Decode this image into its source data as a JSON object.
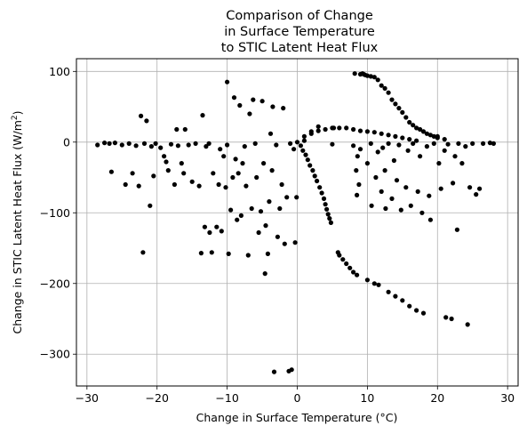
{
  "chart_data": {
    "type": "scatter",
    "title_lines": [
      "Comparison of Change",
      "in Surface Temperature",
      "to STIC Latent Heat Flux"
    ],
    "xlabel": "Change in Surface Temperature (°C)",
    "ylabel_main": "Change in STIC Latent Heat Flux (W/m",
    "ylabel_sup": "2",
    "ylabel_tail": ")",
    "xlim": [
      -31.5,
      31.5
    ],
    "ylim": [
      -345,
      118
    ],
    "xticks": [
      -30,
      -20,
      -10,
      0,
      10,
      20,
      30
    ],
    "xtick_labels": [
      "−30",
      "−20",
      "−10",
      "0",
      "10",
      "20",
      "30"
    ],
    "yticks": [
      100,
      0,
      -100,
      -200,
      -300
    ],
    "ytick_labels": [
      "100",
      "0",
      "−100",
      "−200",
      "−300"
    ],
    "grid": true,
    "marker_color": "#000000",
    "series": [
      {
        "points": [
          [
            -28.5,
            -4
          ],
          [
            -27.5,
            -1
          ],
          [
            -26.8,
            -2
          ],
          [
            -26.5,
            -42
          ],
          [
            -26.0,
            -1
          ],
          [
            -25.0,
            -4
          ],
          [
            -24.5,
            -60
          ],
          [
            -24.0,
            -2
          ],
          [
            -23.5,
            -44
          ],
          [
            -23.0,
            -5
          ],
          [
            -22.6,
            -62
          ],
          [
            -22.3,
            37
          ],
          [
            -22.0,
            -156
          ],
          [
            -21.8,
            -2
          ],
          [
            -21.5,
            30
          ],
          [
            -21.0,
            -90
          ],
          [
            -20.8,
            -6
          ],
          [
            -20.5,
            -48
          ],
          [
            -20.2,
            -2
          ],
          [
            -19.5,
            -8
          ],
          [
            -19.0,
            -20
          ],
          [
            -18.7,
            -28
          ],
          [
            -18.4,
            -40
          ],
          [
            -18.0,
            -3
          ],
          [
            -17.5,
            -60
          ],
          [
            -17.2,
            18
          ],
          [
            -17.0,
            -5
          ],
          [
            -16.5,
            -30
          ],
          [
            -16.2,
            -44
          ],
          [
            -16.0,
            18
          ],
          [
            -15.5,
            -4
          ],
          [
            -15.0,
            -56
          ],
          [
            -14.5,
            -2
          ],
          [
            -14.0,
            -62
          ],
          [
            -13.7,
            -157
          ],
          [
            -13.5,
            38
          ],
          [
            -13.2,
            -120
          ],
          [
            -13.0,
            -6
          ],
          [
            -12.6,
            -2
          ],
          [
            -12.5,
            -128
          ],
          [
            -12.2,
            -156
          ],
          [
            -12.0,
            -44
          ],
          [
            -11.5,
            -120
          ],
          [
            -11.0,
            -10
          ],
          [
            -11.2,
            -60
          ],
          [
            -10.8,
            -126
          ],
          [
            -10.5,
            -20
          ],
          [
            -10.2,
            -64
          ],
          [
            -10.0,
            -4
          ],
          [
            -10.0,
            85
          ],
          [
            -9.8,
            -158
          ],
          [
            -9.5,
            -96
          ],
          [
            -9.2,
            -50
          ],
          [
            -9.0,
            63
          ],
          [
            -8.8,
            -24
          ],
          [
            -8.6,
            -110
          ],
          [
            -8.4,
            -44
          ],
          [
            -8.2,
            52
          ],
          [
            -8.0,
            -104
          ],
          [
            -7.8,
            -30
          ],
          [
            -7.5,
            -6
          ],
          [
            -7.3,
            -62
          ],
          [
            -7.0,
            -160
          ],
          [
            -6.8,
            40
          ],
          [
            -6.5,
            -94
          ],
          [
            -6.3,
            60
          ],
          [
            -6.0,
            -2
          ],
          [
            -5.8,
            -50
          ],
          [
            -5.5,
            -128
          ],
          [
            -5.2,
            -98
          ],
          [
            -5.0,
            58
          ],
          [
            -4.8,
            -30
          ],
          [
            -4.6,
            -186
          ],
          [
            -4.5,
            -118
          ],
          [
            -4.2,
            -158
          ],
          [
            -4.0,
            -84
          ],
          [
            -3.8,
            12
          ],
          [
            -3.6,
            -40
          ],
          [
            -3.5,
            50
          ],
          [
            -3.3,
            -325
          ],
          [
            -3.0,
            -4
          ],
          [
            -2.8,
            -134
          ],
          [
            -2.5,
            -94
          ],
          [
            -2.2,
            -60
          ],
          [
            -2.0,
            48
          ],
          [
            -1.8,
            -144
          ],
          [
            -1.5,
            -78
          ],
          [
            -1.2,
            -324
          ],
          [
            -1.0,
            -2
          ],
          [
            -0.8,
            -322
          ],
          [
            -0.5,
            -10
          ],
          [
            -0.3,
            -142
          ],
          [
            -0.1,
            -78
          ],
          [
            0.0,
            0
          ],
          [
            0.5,
            -5
          ],
          [
            0.8,
            -12
          ],
          [
            1.0,
            2
          ],
          [
            1.2,
            -18
          ],
          [
            1.5,
            -25
          ],
          [
            1.8,
            -33
          ],
          [
            2.0,
            15
          ],
          [
            2.2,
            -40
          ],
          [
            2.5,
            -48
          ],
          [
            2.8,
            -55
          ],
          [
            3.0,
            22
          ],
          [
            3.2,
            -64
          ],
          [
            3.5,
            -72
          ],
          [
            3.8,
            -80
          ],
          [
            4.0,
            -88
          ],
          [
            4.2,
            -95
          ],
          [
            4.4,
            -102
          ],
          [
            4.6,
            -108
          ],
          [
            4.8,
            -114
          ],
          [
            5.0,
            -3
          ],
          [
            5.2,
            20
          ],
          [
            5.8,
            -156
          ],
          [
            6.0,
            -160
          ],
          [
            6.5,
            -166
          ],
          [
            7.0,
            -172
          ],
          [
            7.5,
            -178
          ],
          [
            8.0,
            -184
          ],
          [
            8.5,
            -188
          ],
          [
            8.0,
            -5
          ],
          [
            8.2,
            97
          ],
          [
            8.6,
            -20
          ],
          [
            8.4,
            -40
          ],
          [
            8.8,
            -60
          ],
          [
            8.5,
            -75
          ],
          [
            9.0,
            -10
          ],
          [
            9.5,
            96
          ],
          [
            10.0,
            -30
          ],
          [
            10.0,
            -195
          ],
          [
            10.5,
            -2
          ],
          [
            10.6,
            -90
          ],
          [
            11.0,
            -200
          ],
          [
            11.2,
            -50
          ],
          [
            11.5,
            -14
          ],
          [
            11.6,
            -202
          ],
          [
            12.0,
            -70
          ],
          [
            12.2,
            -8
          ],
          [
            12.5,
            -40
          ],
          [
            12.6,
            -94
          ],
          [
            13.0,
            -2
          ],
          [
            13.0,
            -212
          ],
          [
            13.5,
            -80
          ],
          [
            13.8,
            -26
          ],
          [
            14.0,
            -218
          ],
          [
            14.2,
            -54
          ],
          [
            14.5,
            -4
          ],
          [
            14.8,
            -96
          ],
          [
            15.0,
            -224
          ],
          [
            15.5,
            -64
          ],
          [
            15.8,
            -12
          ],
          [
            16.0,
            -232
          ],
          [
            16.2,
            -90
          ],
          [
            16.5,
            -2
          ],
          [
            17.0,
            -238
          ],
          [
            17.2,
            -70
          ],
          [
            17.5,
            -20
          ],
          [
            17.8,
            -100
          ],
          [
            18.0,
            -242
          ],
          [
            18.5,
            -6
          ],
          [
            18.8,
            -76
          ],
          [
            19.0,
            -110
          ],
          [
            19.5,
            -2
          ],
          [
            20.0,
            8
          ],
          [
            20.2,
            -30
          ],
          [
            20.5,
            -66
          ],
          [
            21.0,
            -12
          ],
          [
            21.2,
            -248
          ],
          [
            21.5,
            -3
          ],
          [
            22.0,
            -250
          ],
          [
            22.2,
            -58
          ],
          [
            22.5,
            -20
          ],
          [
            22.8,
            -124
          ],
          [
            23.0,
            -2
          ],
          [
            23.5,
            -30
          ],
          [
            24.0,
            -6
          ],
          [
            24.3,
            -258
          ],
          [
            24.6,
            -64
          ],
          [
            25.0,
            -2
          ],
          [
            25.5,
            -74
          ],
          [
            26.0,
            -66
          ],
          [
            26.5,
            -2
          ],
          [
            27.5,
            -1
          ],
          [
            28.0,
            -2
          ],
          [
            9.0,
            96
          ],
          [
            9.3,
            97
          ],
          [
            9.7,
            95
          ],
          [
            10.0,
            94
          ],
          [
            10.5,
            93
          ],
          [
            11.0,
            92
          ],
          [
            11.5,
            88
          ],
          [
            12.0,
            80
          ],
          [
            12.5,
            76
          ],
          [
            13.0,
            70
          ],
          [
            13.5,
            60
          ],
          [
            14.0,
            54
          ],
          [
            14.5,
            48
          ],
          [
            15.0,
            42
          ],
          [
            15.5,
            35
          ],
          [
            16.0,
            28
          ],
          [
            16.5,
            24
          ],
          [
            17.0,
            20
          ],
          [
            17.5,
            18
          ],
          [
            18.0,
            15
          ],
          [
            18.5,
            12
          ],
          [
            19.0,
            10
          ],
          [
            19.5,
            8
          ],
          [
            20.0,
            6
          ],
          [
            21.0,
            4
          ],
          [
            1.0,
            8
          ],
          [
            2.0,
            12
          ],
          [
            3.0,
            16
          ],
          [
            4.0,
            18
          ],
          [
            5.0,
            20
          ],
          [
            6.0,
            20
          ],
          [
            7.0,
            20
          ],
          [
            8.0,
            18
          ],
          [
            9.0,
            16
          ],
          [
            10.0,
            15
          ],
          [
            11.0,
            14
          ],
          [
            12.0,
            12
          ],
          [
            13.0,
            10
          ],
          [
            14.0,
            8
          ],
          [
            15.0,
            6
          ],
          [
            16.0,
            4
          ],
          [
            17.0,
            2
          ]
        ]
      }
    ]
  }
}
